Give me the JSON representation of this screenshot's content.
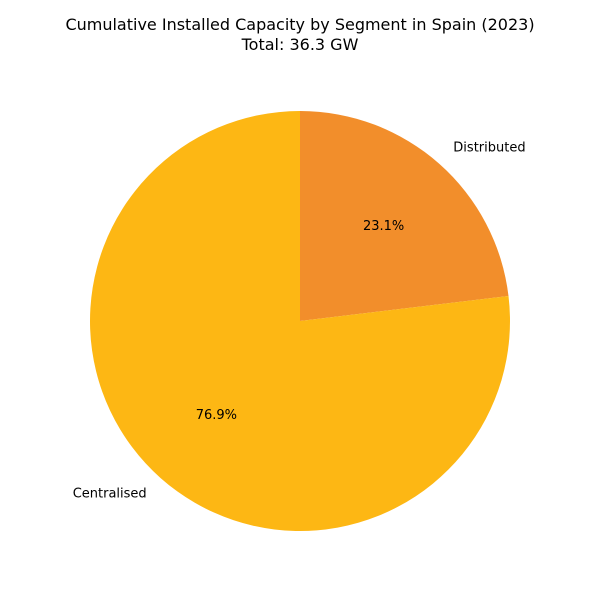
{
  "chart_data": {
    "type": "pie",
    "title": "Cumulative Installed Capacity by Segment in Spain (2023)",
    "subtitle": "Total: 36.3 GW",
    "slices": [
      {
        "label": "Distributed",
        "percent_label": "23.1%",
        "value": 23.1,
        "color": "#f28e2b"
      },
      {
        "label": "Centralised",
        "percent_label": "76.9%",
        "value": 76.9,
        "color": "#fdb714"
      }
    ],
    "start_angle": 90,
    "direction": "clockwise"
  }
}
